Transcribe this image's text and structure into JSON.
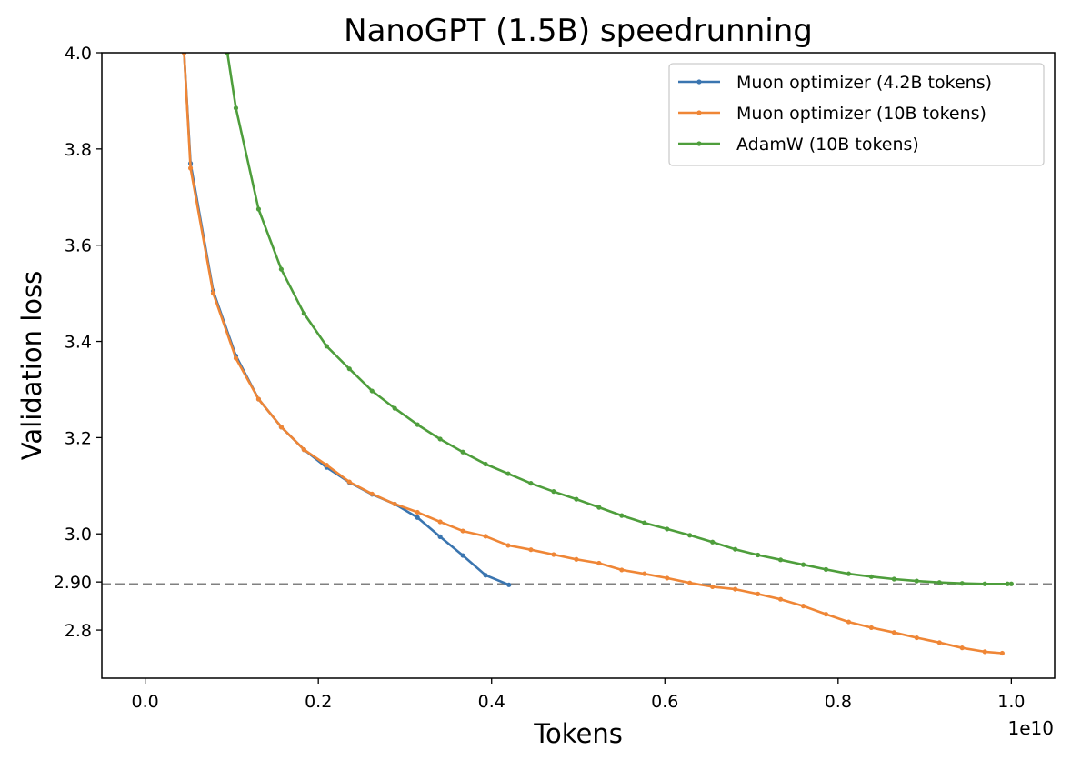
{
  "chart_data": {
    "type": "line",
    "title": "NanoGPT (1.5B) speedrunning",
    "xlabel": "Tokens",
    "ylabel": "Validation loss",
    "x_offset_label": "1e10",
    "xlim": [
      -0.05,
      1.05
    ],
    "ylim": [
      2.7,
      4.0
    ],
    "xticks": [
      0.0,
      0.2,
      0.4,
      0.6,
      0.8,
      1.0
    ],
    "xtick_labels": [
      "0.0",
      "0.2",
      "0.4",
      "0.6",
      "0.8",
      "1.0"
    ],
    "yticks": [
      2.8,
      2.9,
      3.0,
      3.2,
      3.4,
      3.6,
      3.8,
      4.0
    ],
    "ytick_labels": [
      "2.8",
      "2.90",
      "3.0",
      "3.2",
      "3.4",
      "3.6",
      "3.8",
      "4.0"
    ],
    "grid": false,
    "legend_position": "top-right",
    "reference_line": {
      "y": 2.895,
      "style": "dashed",
      "color": "#808080"
    },
    "series": [
      {
        "name": "Muon optimizer (4.2B tokens)",
        "color": "#3a75b0",
        "x": [
          0.045,
          0.0524,
          0.0786,
          0.1048,
          0.131,
          0.1572,
          0.1834,
          0.2096,
          0.2358,
          0.262,
          0.2882,
          0.3144,
          0.3406,
          0.3668,
          0.393,
          0.42
        ],
        "y": [
          4.0,
          3.77,
          3.505,
          3.37,
          3.28,
          3.222,
          3.175,
          3.138,
          3.107,
          3.082,
          3.062,
          3.034,
          2.994,
          2.955,
          2.914,
          2.894
        ]
      },
      {
        "name": "Muon optimizer (10B tokens)",
        "color": "#ef8636",
        "x": [
          0.045,
          0.0524,
          0.0786,
          0.1048,
          0.131,
          0.1572,
          0.1834,
          0.2096,
          0.2358,
          0.262,
          0.2882,
          0.3144,
          0.3406,
          0.3668,
          0.393,
          0.4192,
          0.4454,
          0.4716,
          0.4978,
          0.524,
          0.5502,
          0.5764,
          0.6026,
          0.6288,
          0.655,
          0.6812,
          0.7074,
          0.7336,
          0.7598,
          0.786,
          0.8122,
          0.8384,
          0.8646,
          0.8908,
          0.917,
          0.9432,
          0.9694,
          0.9895
        ],
        "y": [
          4.0,
          3.76,
          3.5,
          3.365,
          3.28,
          3.222,
          3.175,
          3.143,
          3.108,
          3.083,
          3.062,
          3.045,
          3.025,
          3.006,
          2.995,
          2.976,
          2.967,
          2.957,
          2.947,
          2.939,
          2.925,
          2.917,
          2.908,
          2.898,
          2.89,
          2.885,
          2.875,
          2.864,
          2.85,
          2.833,
          2.817,
          2.805,
          2.795,
          2.784,
          2.774,
          2.763,
          2.755,
          2.752
        ]
      },
      {
        "name": "AdamW (10B tokens)",
        "color": "#4e9e3c",
        "x": [
          0.095,
          0.1048,
          0.131,
          0.1572,
          0.1834,
          0.2096,
          0.2358,
          0.262,
          0.2882,
          0.3144,
          0.3406,
          0.3668,
          0.393,
          0.4192,
          0.4454,
          0.4716,
          0.4978,
          0.524,
          0.5502,
          0.5764,
          0.6026,
          0.6288,
          0.655,
          0.6812,
          0.7074,
          0.7336,
          0.7598,
          0.786,
          0.8122,
          0.8384,
          0.8646,
          0.8908,
          0.917,
          0.9432,
          0.9694,
          0.9956,
          1.0
        ],
        "y": [
          4.0,
          3.885,
          3.675,
          3.55,
          3.458,
          3.39,
          3.343,
          3.297,
          3.261,
          3.227,
          3.197,
          3.17,
          3.145,
          3.125,
          3.105,
          3.088,
          3.072,
          3.055,
          3.038,
          3.023,
          3.01,
          2.997,
          2.983,
          2.968,
          2.956,
          2.946,
          2.936,
          2.926,
          2.917,
          2.911,
          2.906,
          2.902,
          2.899,
          2.897,
          2.896,
          2.896,
          2.896
        ]
      }
    ]
  }
}
